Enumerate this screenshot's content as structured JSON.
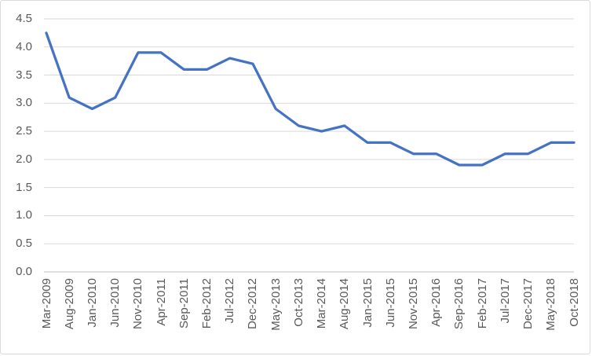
{
  "chart_data": {
    "type": "line",
    "categories": [
      "Mar-2009",
      "Aug-2009",
      "Jan-2010",
      "Jun-2010",
      "Nov-2010",
      "Apr-2011",
      "Sep-2011",
      "Feb-2012",
      "Jul-2012",
      "Dec-2012",
      "May-2013",
      "Oct-2013",
      "Mar-2014",
      "Aug-2014",
      "Jan-2015",
      "Jun-2015",
      "Nov-2015",
      "Apr-2016",
      "Sep-2016",
      "Feb-2017",
      "Jul-2017",
      "Dec-2017",
      "May-2018",
      "Oct-2018"
    ],
    "values": [
      4.25,
      3.1,
      2.9,
      3.1,
      3.9,
      3.9,
      3.6,
      3.6,
      3.8,
      3.7,
      2.9,
      2.6,
      2.5,
      2.6,
      2.3,
      2.3,
      2.1,
      2.1,
      1.9,
      1.9,
      2.1,
      2.1,
      2.3,
      2.3
    ],
    "ylim": [
      0,
      4.5
    ],
    "ytick_step": 0.5,
    "ytick_labels": [
      "0.0",
      "0.5",
      "1.0",
      "1.5",
      "2.0",
      "2.5",
      "3.0",
      "3.5",
      "4.0",
      "4.5"
    ],
    "grid": true,
    "legend": "none",
    "line_color": "#4472C4",
    "gridline_color": "#D9D9D9",
    "axis_line_color": "#BFBFBF",
    "tick_label_color": "#595959",
    "background_color": "#FFFFFF",
    "border_color": "#D9D9D9"
  }
}
